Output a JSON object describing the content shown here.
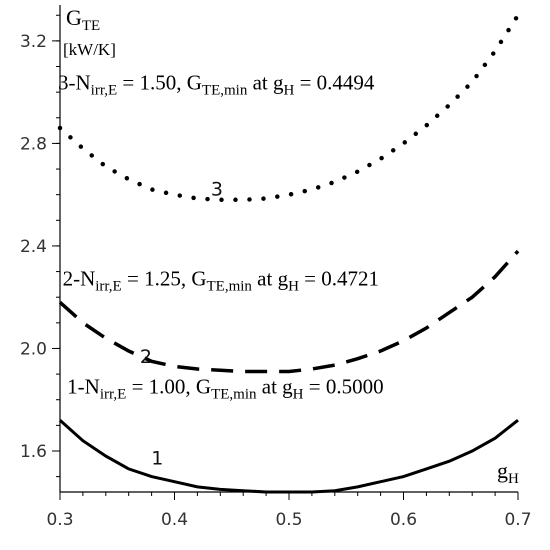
{
  "chart_data": {
    "type": "line",
    "x": [
      0.3,
      0.32,
      0.34,
      0.36,
      0.38,
      0.4,
      0.42,
      0.44,
      0.46,
      0.48,
      0.5,
      0.52,
      0.54,
      0.56,
      0.58,
      0.6,
      0.62,
      0.64,
      0.66,
      0.68,
      0.7
    ],
    "series": [
      {
        "name": "1",
        "style": "solid",
        "values": [
          1.72,
          1.64,
          1.58,
          1.53,
          1.5,
          1.48,
          1.46,
          1.45,
          1.445,
          1.44,
          1.44,
          1.44,
          1.445,
          1.46,
          1.48,
          1.5,
          1.53,
          1.56,
          1.6,
          1.65,
          1.72
        ]
      },
      {
        "name": "2",
        "style": "dashed",
        "values": [
          2.18,
          2.1,
          2.04,
          1.99,
          1.95,
          1.93,
          1.92,
          1.915,
          1.91,
          1.91,
          1.91,
          1.92,
          1.935,
          1.96,
          1.99,
          2.03,
          2.08,
          2.14,
          2.2,
          2.28,
          2.38
        ]
      },
      {
        "name": "3",
        "style": "dotted",
        "values": [
          2.86,
          2.78,
          2.71,
          2.66,
          2.62,
          2.6,
          2.585,
          2.58,
          2.58,
          2.585,
          2.6,
          2.62,
          2.65,
          2.69,
          2.74,
          2.8,
          2.87,
          2.95,
          3.04,
          3.16,
          3.3
        ]
      }
    ],
    "xlabel": {
      "base": "g",
      "sub": "H"
    },
    "ylabel": {
      "base": "G",
      "sub": "TE",
      "unit": "[kW/K]"
    },
    "xlim": [
      0.3,
      0.7
    ],
    "ylim": [
      1.44,
      3.34
    ],
    "xticks": [
      "0.3",
      "0.4",
      "0.5",
      "0.6",
      "0.7"
    ],
    "yticks": [
      "1.6",
      "2.0",
      "2.4",
      "2.8",
      "3.2"
    ],
    "curve_labels": [
      {
        "text": "1",
        "x": 0.385,
        "y": 1.575
      },
      {
        "text": "2",
        "x": 0.375,
        "y": 1.97
      },
      {
        "text": "3",
        "x": 0.437,
        "y": 2.625
      }
    ],
    "annotations": [
      {
        "id": "a3",
        "curve": "3",
        "prefix": "3-N",
        "sub1": "irr,E",
        "mid": " = 1.50, G",
        "sub2": "TE,min",
        "pre2": "  at g",
        "sub3": "H",
        "post": " = 0.4494",
        "x": 0.3,
        "y": 3.01
      },
      {
        "id": "a2",
        "curve": "2",
        "prefix": "2-N",
        "sub1": "irr,E",
        "mid": " = 1.25, G",
        "sub2": "TE,min",
        "pre2": "  at g",
        "sub3": "H",
        "post": " = 0.4721",
        "x": 0.304,
        "y": 2.245
      },
      {
        "id": "a1",
        "curve": "1",
        "prefix": "1-N",
        "sub1": "irr,E",
        "mid": " = 1.00, G",
        "sub2": "TE,min",
        "pre2": "  at g",
        "sub3": "H",
        "post": " = 0.5000",
        "x": 0.308,
        "y": 1.825
      }
    ]
  }
}
